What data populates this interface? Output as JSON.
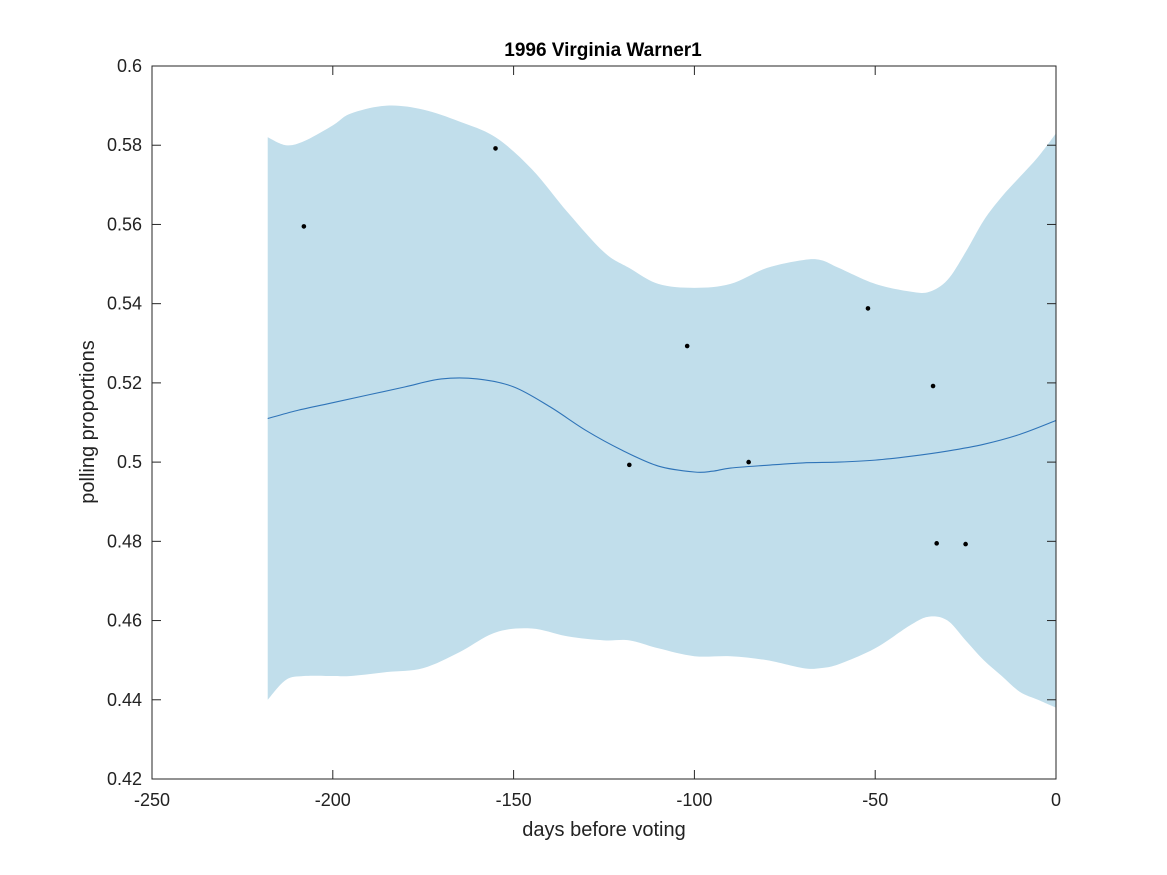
{
  "chart_data": {
    "type": "line",
    "title": "1996 Virginia Warner1",
    "xlabel": "days before voting",
    "ylabel": "polling proportions",
    "xlim": [
      -250,
      0
    ],
    "ylim": [
      0.42,
      0.6
    ],
    "xticks": [
      -250,
      -200,
      -150,
      -100,
      -50,
      0
    ],
    "xtick_labels": [
      "-250",
      "-200",
      "-150",
      "-100",
      "-50",
      "0"
    ],
    "yticks": [
      0.42,
      0.44,
      0.46,
      0.48,
      0.5,
      0.52,
      0.54,
      0.56,
      0.58,
      0.6
    ],
    "ytick_labels": [
      "0.42",
      "0.44",
      "0.46",
      "0.48",
      "0.5",
      "0.52",
      "0.54",
      "0.56",
      "0.58",
      "0.6"
    ],
    "grid": false,
    "band": {
      "x": [
        -218,
        -213,
        -208,
        -200,
        -195,
        -185,
        -175,
        -165,
        -155,
        -145,
        -135,
        -125,
        -118,
        -110,
        -100,
        -90,
        -80,
        -70,
        -65,
        -60,
        -50,
        -40,
        -35,
        -30,
        -25,
        -20,
        -15,
        -10,
        -5,
        0
      ],
      "upper": [
        0.582,
        0.58,
        0.581,
        0.585,
        0.588,
        0.59,
        0.589,
        0.586,
        0.582,
        0.574,
        0.563,
        0.553,
        0.549,
        0.545,
        0.544,
        0.545,
        0.549,
        0.551,
        0.551,
        0.549,
        0.545,
        0.543,
        0.543,
        0.546,
        0.553,
        0.561,
        0.567,
        0.572,
        0.577,
        0.583
      ],
      "lower": [
        0.44,
        0.445,
        0.446,
        0.446,
        0.446,
        0.447,
        0.448,
        0.452,
        0.457,
        0.458,
        0.456,
        0.455,
        0.455,
        0.453,
        0.451,
        0.451,
        0.45,
        0.448,
        0.448,
        0.449,
        0.453,
        0.459,
        0.461,
        0.46,
        0.455,
        0.45,
        0.446,
        0.442,
        0.44,
        0.438
      ]
    },
    "series": [
      {
        "type": "line",
        "color": "#2f74b8",
        "x": [
          -218,
          -210,
          -200,
          -190,
          -180,
          -170,
          -160,
          -150,
          -140,
          -130,
          -120,
          -110,
          -100,
          -95,
          -90,
          -80,
          -70,
          -60,
          -50,
          -40,
          -30,
          -20,
          -10,
          0
        ],
        "y": [
          0.511,
          0.513,
          0.515,
          0.517,
          0.519,
          0.521,
          0.521,
          0.519,
          0.514,
          0.508,
          0.503,
          0.499,
          0.4975,
          0.4977,
          0.4985,
          0.4992,
          0.4998,
          0.5,
          0.5005,
          0.5015,
          0.5028,
          0.5045,
          0.507,
          0.5105
        ]
      },
      {
        "type": "scatter",
        "color": "#000000",
        "x": [
          -208,
          -155,
          -118,
          -102,
          -85,
          -52,
          -34,
          -33,
          -25
        ],
        "y": [
          0.5595,
          0.5792,
          0.4993,
          0.5293,
          0.5,
          0.5388,
          0.5192,
          0.4795,
          0.4793
        ]
      }
    ]
  }
}
